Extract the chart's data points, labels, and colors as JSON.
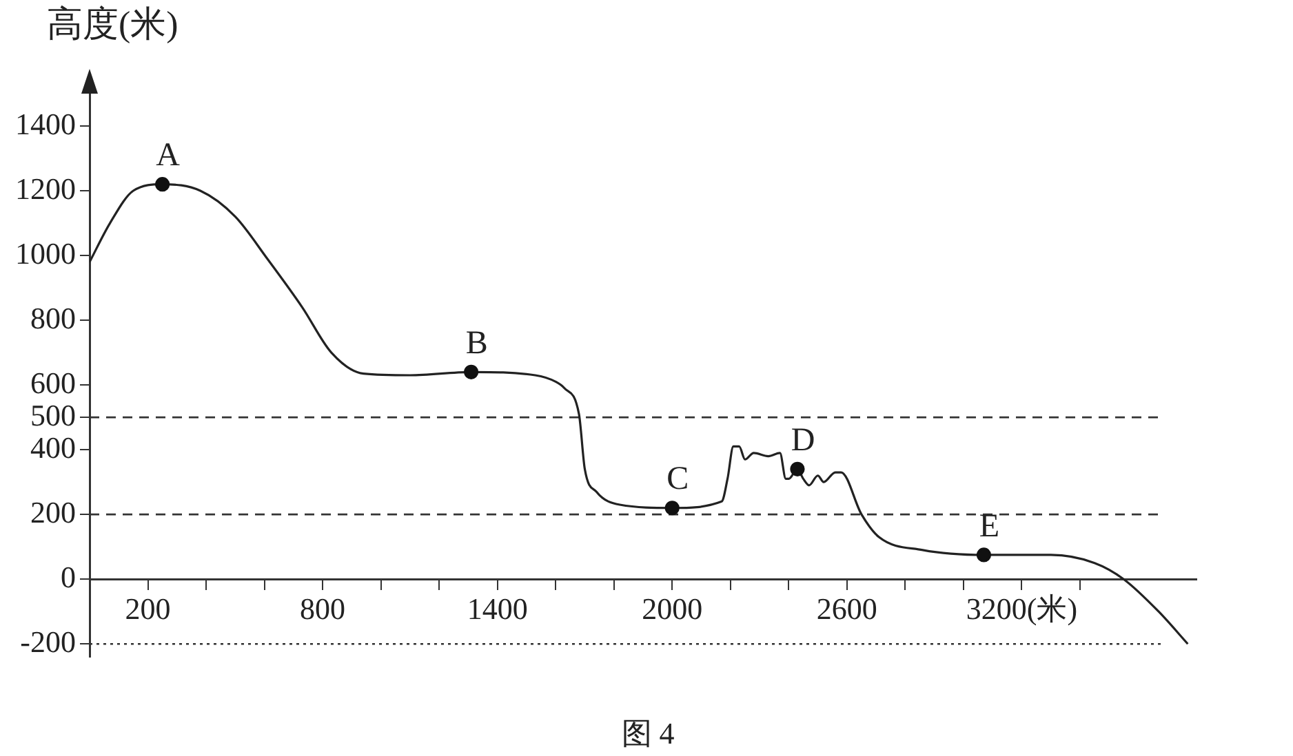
{
  "chart_data": {
    "type": "line",
    "ylabel": "高度(米)",
    "legend": false,
    "grid": false,
    "marker": "none",
    "xlim": [
      0,
      3800
    ],
    "ylim": [
      -240,
      1500
    ],
    "xticks": [
      200,
      {
        "value": 400,
        "label": null
      },
      {
        "value": 600,
        "label": null
      },
      800,
      {
        "value": 1000,
        "label": null
      },
      {
        "value": 1200,
        "label": null
      },
      1400,
      {
        "value": 1600,
        "label": null
      },
      {
        "value": 1800,
        "label": null
      },
      2000,
      {
        "value": 2200,
        "label": null
      },
      {
        "value": 2400,
        "label": null
      },
      2600,
      {
        "value": 2800,
        "label": null
      },
      {
        "value": 3000,
        "label": null
      },
      {
        "value": 3200,
        "label": "3200(米)"
      },
      {
        "value": 3400,
        "label": null
      }
    ],
    "yticks": [
      -200,
      0,
      200,
      400,
      500,
      600,
      800,
      1000,
      1200,
      1400
    ],
    "series": [
      {
        "color": "#222222",
        "x": [
          0,
          70,
          150,
          250,
          380,
          500,
          610,
          730,
          830,
          940,
          1100,
          1310,
          1530,
          1600,
          1630,
          1680,
          1700,
          1740,
          1820,
          2000,
          2170,
          2190,
          2210,
          2230,
          2250,
          2280,
          2330,
          2370,
          2390,
          2400,
          2430,
          2450,
          2470,
          2500,
          2520,
          2560,
          2580,
          2650,
          2710,
          2860,
          3070,
          3300,
          3450,
          3550,
          3670,
          3770
        ],
        "values": [
          980,
          1100,
          1200,
          1220,
          1200,
          1120,
          990,
          840,
          700,
          635,
          630,
          640,
          630,
          610,
          590,
          510,
          340,
          270,
          230,
          220,
          240,
          310,
          410,
          410,
          370,
          390,
          380,
          390,
          310,
          310,
          340,
          310,
          290,
          320,
          300,
          330,
          330,
          200,
          130,
          90,
          75,
          75,
          50,
          0,
          -100,
          -200
        ]
      },
      {
        "type": "scatter",
        "color": "#111111",
        "marker": "circle",
        "x": [
          250,
          1310,
          2000,
          2430,
          3070
        ],
        "values": [
          1220,
          640,
          220,
          340,
          75
        ]
      }
    ],
    "ref_lines": [
      {
        "axis": "y",
        "value": 500,
        "line_style": "dashed",
        "color": "#333333"
      },
      {
        "axis": "y",
        "value": 200,
        "line_style": "dashed",
        "color": "#333333"
      },
      {
        "axis": "y",
        "value": -200,
        "line_style": "dotted",
        "color": "#333333"
      }
    ],
    "annotations": [
      {
        "text": "A",
        "x": 250,
        "y": 1220
      },
      {
        "text": "B",
        "x": 1310,
        "y": 640
      },
      {
        "text": "C",
        "x": 2000,
        "y": 220
      },
      {
        "text": "D",
        "x": 2430,
        "y": 340
      },
      {
        "text": "E",
        "x": 3070,
        "y": 75
      },
      "图 4"
    ]
  }
}
